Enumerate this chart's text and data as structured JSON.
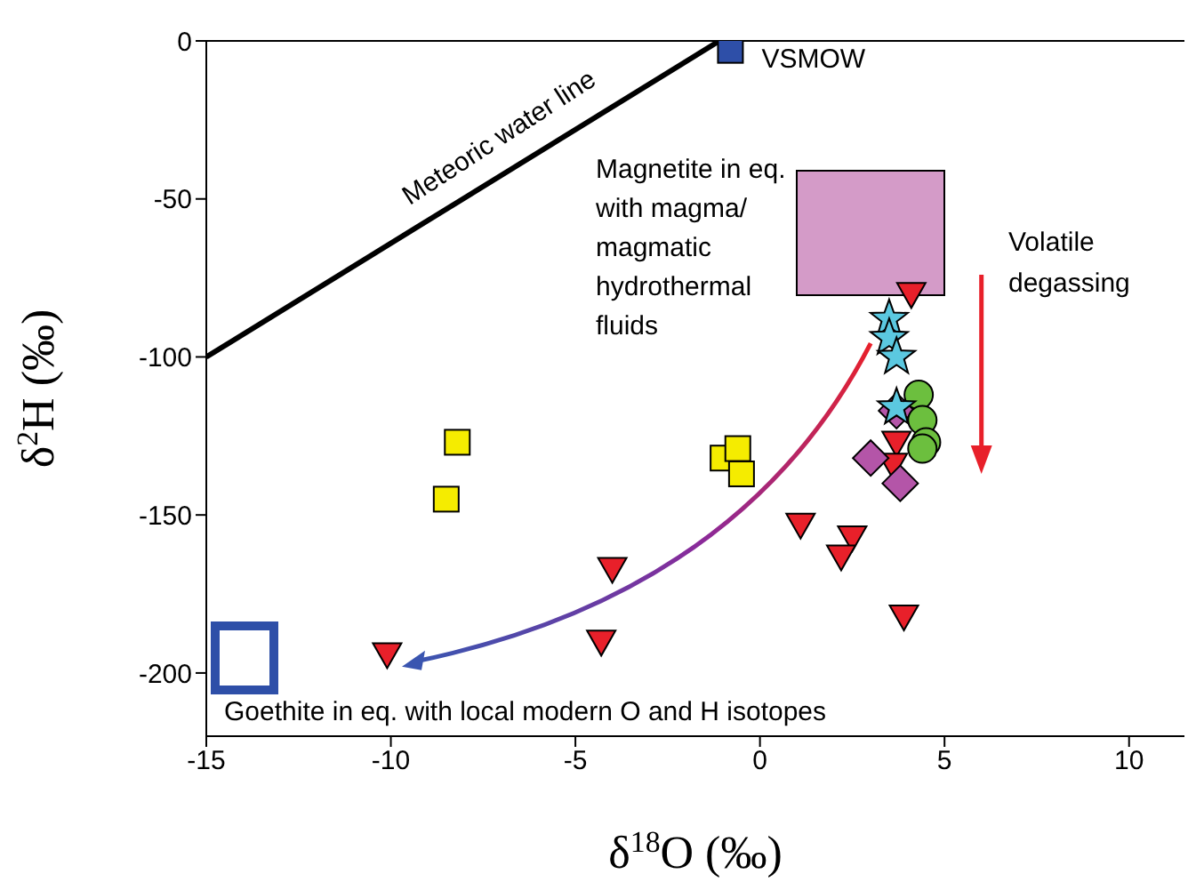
{
  "chart_data": {
    "type": "scatter",
    "xlabel": "δ$^{18}$O (‰)",
    "ylabel": "δ$^{2}$H (‰)",
    "xlim": [
      -15,
      11.5
    ],
    "ylim": [
      -220,
      0
    ],
    "xticks": [
      -15,
      -10,
      -5,
      0,
      5,
      10
    ],
    "yticks": [
      -200,
      -150,
      -100,
      -50,
      0
    ],
    "ref_lines": [
      {
        "axis": "y",
        "value": 0,
        "color": "#000000"
      }
    ],
    "annotations": [
      "Meteoric water line",
      "Magnetite in eq. with magma/ magmatic hydrothermal fluids",
      "Volatile degassing",
      "Goethite in eq. with local modern O and H isotopes"
    ],
    "series": [
      {
        "type": "line",
        "color": "#000000",
        "x": [
          -15,
          -1.1
        ],
        "values": [
          -100,
          0
        ]
      },
      {
        "name": "VSMOW",
        "color": "#2e4fa8",
        "marker": "square",
        "x": [
          -0.8
        ],
        "values": [
          -3
        ]
      },
      {
        "color": "#f5ec00",
        "marker": "square",
        "x": [
          -8.2,
          -8.5,
          -1.0,
          -0.6,
          -0.5
        ],
        "values": [
          -127,
          -145,
          -132,
          -129,
          -137
        ]
      },
      {
        "color": "#e8202a",
        "marker": "triangle",
        "x": [
          4.1,
          3.7,
          3.6,
          1.1,
          2.5,
          2.2,
          -4.0,
          -4.3,
          -10.1,
          3.9
        ],
        "values": [
          -80,
          -127,
          -134,
          -153,
          -157,
          -163,
          -167,
          -190,
          -194,
          -182
        ]
      },
      {
        "color": "#b455a8",
        "marker": "diamond",
        "x": [
          3.7,
          3.0,
          3.8
        ],
        "values": [
          -117,
          -132,
          -140
        ]
      },
      {
        "color": "#6cbf3e",
        "marker": "circle",
        "x": [
          4.3,
          4.4,
          4.5,
          4.4
        ],
        "values": [
          -112,
          -120,
          -127,
          -129
        ]
      },
      {
        "color": "#5bc8e0",
        "marker": "star",
        "x": [
          3.5,
          3.5,
          3.7,
          3.7
        ],
        "values": [
          -88,
          -94,
          -100,
          -116
        ]
      }
    ]
  }
}
